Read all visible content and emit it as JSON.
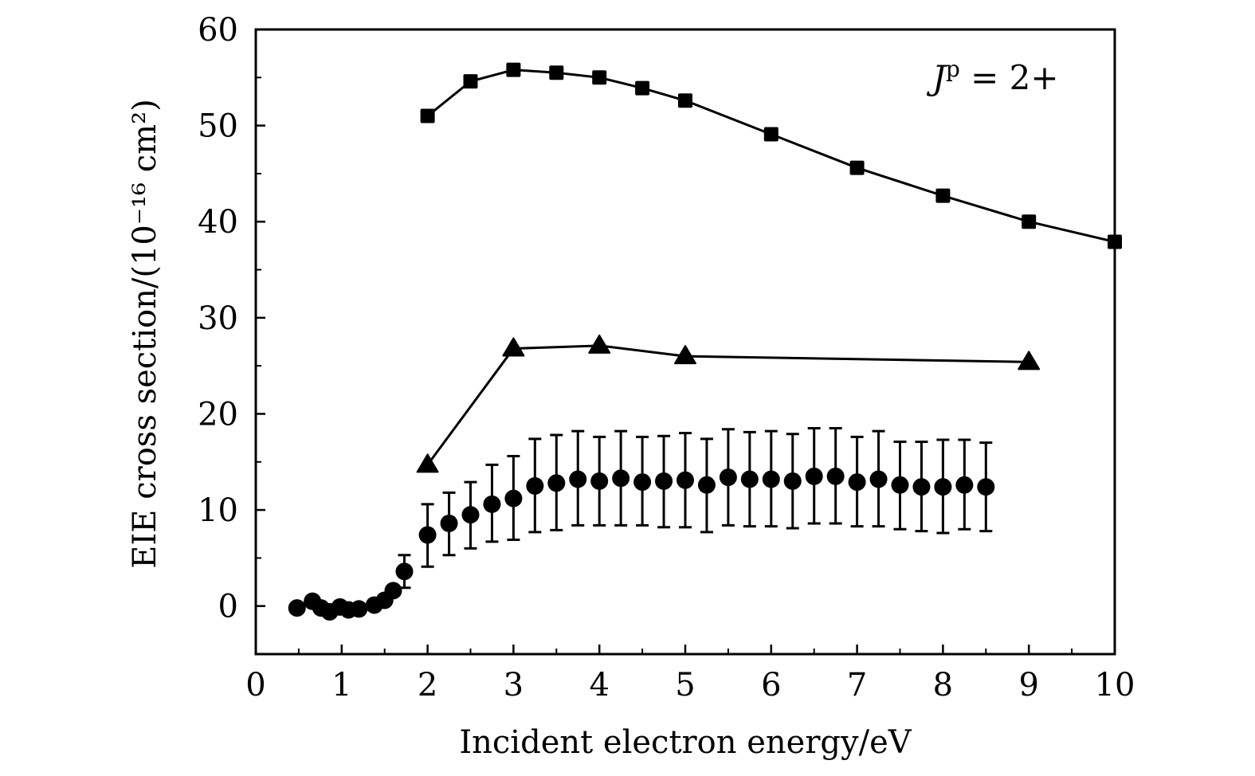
{
  "chart_data": {
    "type": "scatter",
    "title": "",
    "xlabel": "Incident electron energy/eV",
    "ylabel": "EIE cross section/(10⁻¹⁶ cm²)",
    "xlim": [
      0,
      10
    ],
    "ylim": [
      -5,
      60
    ],
    "xticks": [
      "0",
      "1",
      "2",
      "3",
      "4",
      "5",
      "6",
      "7",
      "8",
      "9",
      "10"
    ],
    "xtick_values": [
      0,
      1,
      2,
      3,
      4,
      5,
      6,
      7,
      8,
      9,
      10
    ],
    "xminor_step": 0.5,
    "yticks": [
      "0",
      "10",
      "20",
      "30",
      "40",
      "50",
      "60"
    ],
    "ytick_values": [
      0,
      10,
      20,
      30,
      40,
      50,
      60
    ],
    "yminor_step": 5,
    "grid": false,
    "annotation": {
      "text_main": "J",
      "text_sup": "p",
      "text_rest": " = 2+",
      "placement": "top-right"
    },
    "series": [
      {
        "name": "squares",
        "marker": "square",
        "line": true,
        "x": [
          2,
          2.5,
          3,
          3.5,
          4,
          4.5,
          5,
          6,
          7,
          8,
          9,
          10
        ],
        "y": [
          51.0,
          54.6,
          55.8,
          55.5,
          55.0,
          53.9,
          52.6,
          49.1,
          45.6,
          42.7,
          40.0,
          37.9
        ]
      },
      {
        "name": "triangles",
        "marker": "triangle",
        "line": true,
        "x": [
          2,
          3,
          4,
          5,
          9
        ],
        "y": [
          14.7,
          26.8,
          27.1,
          26.0,
          25.4
        ]
      },
      {
        "name": "circles",
        "marker": "circle",
        "line": false,
        "x": [
          0.48,
          0.66,
          0.76,
          0.86,
          0.98,
          1.08,
          1.2,
          1.38,
          1.5,
          1.6,
          1.73,
          2.0,
          2.25,
          2.5,
          2.75,
          3.0,
          3.25,
          3.5,
          3.75,
          4.0,
          4.25,
          4.5,
          4.75,
          5.0,
          5.25,
          5.5,
          5.75,
          6.0,
          6.25,
          6.5,
          6.75,
          7.0,
          7.25,
          7.5,
          7.75,
          8.0,
          8.25,
          8.5
        ],
        "y": [
          -0.2,
          0.5,
          -0.2,
          -0.6,
          -0.1,
          -0.4,
          -0.3,
          0.1,
          0.6,
          1.6,
          3.6,
          7.4,
          8.6,
          9.5,
          10.6,
          11.2,
          12.5,
          12.8,
          13.2,
          13.0,
          13.3,
          12.9,
          13.0,
          13.1,
          12.6,
          13.4,
          13.2,
          13.2,
          13.0,
          13.5,
          13.5,
          12.9,
          13.2,
          12.6,
          12.4,
          12.4,
          12.6,
          12.4
        ],
        "err_low": [
          null,
          null,
          null,
          null,
          null,
          null,
          null,
          null,
          null,
          null,
          1.9,
          4.1,
          5.3,
          6.0,
          6.7,
          6.9,
          7.7,
          7.9,
          8.4,
          8.4,
          8.4,
          8.4,
          8.2,
          8.2,
          7.7,
          8.4,
          8.3,
          8.3,
          8.1,
          8.6,
          8.6,
          8.3,
          8.3,
          8.0,
          7.8,
          7.6,
          8.0,
          7.8
        ],
        "err_high": [
          null,
          null,
          null,
          null,
          null,
          null,
          null,
          null,
          null,
          null,
          5.3,
          10.6,
          11.8,
          12.9,
          14.7,
          15.6,
          17.4,
          17.8,
          18.2,
          17.6,
          18.2,
          17.6,
          17.7,
          18.0,
          17.4,
          18.4,
          18.1,
          18.2,
          17.9,
          18.5,
          18.5,
          17.6,
          18.2,
          17.1,
          17.1,
          17.3,
          17.3,
          17.0
        ]
      }
    ]
  }
}
